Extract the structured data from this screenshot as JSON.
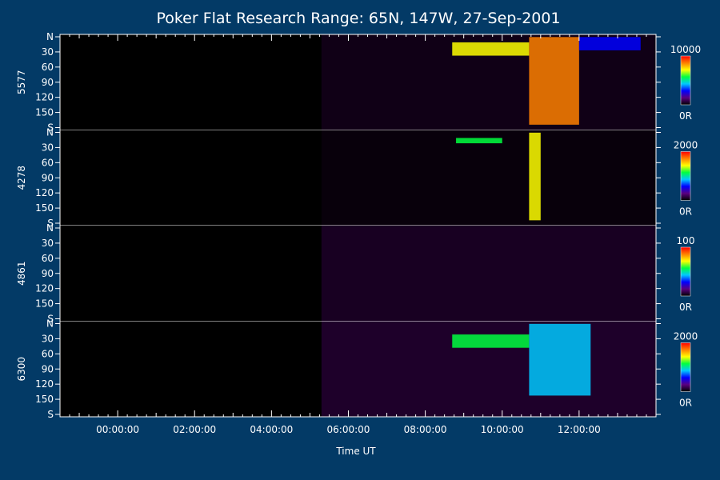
{
  "title": "Poker Flat Research Range: 65N, 147W, 27-Sep-2001",
  "chart_data": {
    "type": "heatmap",
    "title": "Poker Flat Research Range: 65N, 147W, 27-Sep-2001",
    "xlabel": "Time UT",
    "x_ticks": [
      "00:00:00",
      "02:00:00",
      "04:00:00",
      "06:00:00",
      "08:00:00",
      "10:00:00",
      "12:00:00"
    ],
    "xlim_hours": [
      -1.5,
      14.0
    ],
    "y_ticks": [
      "N",
      "30",
      "60",
      "90",
      "120",
      "150",
      "S"
    ],
    "ylim": [
      0,
      180
    ],
    "colormap": [
      "#000000",
      "#5a0080",
      "#0000ff",
      "#00c8ff",
      "#00ff40",
      "#ffff00",
      "#ff8000",
      "#ff0000"
    ],
    "panels": [
      {
        "wavelength": "5577",
        "colorbar_max": "10000",
        "colorbar_min": "0R",
        "data_start_h": 5.3,
        "background_level": 0.08,
        "features": [
          {
            "t0": 8.7,
            "t1": 10.7,
            "lat0": 15,
            "lat1": 40,
            "level": 0.7
          },
          {
            "t0": 10.7,
            "t1": 12.0,
            "lat0": 5,
            "lat1": 170,
            "level": 0.85
          },
          {
            "t0": 12.0,
            "t1": 13.6,
            "lat0": 5,
            "lat1": 30,
            "level": 0.3
          }
        ]
      },
      {
        "wavelength": "4278",
        "colorbar_max": "2000",
        "colorbar_min": "0R",
        "data_start_h": 5.3,
        "background_level": 0.04,
        "features": [
          {
            "t0": 8.8,
            "t1": 10.0,
            "lat0": 15,
            "lat1": 25,
            "level": 0.6
          },
          {
            "t0": 10.7,
            "t1": 11.0,
            "lat0": 5,
            "lat1": 170,
            "level": 0.75
          }
        ]
      },
      {
        "wavelength": "4861",
        "colorbar_max": "100",
        "colorbar_min": "0R",
        "data_start_h": 5.3,
        "background_level": 0.12,
        "features": []
      },
      {
        "wavelength": "6300",
        "colorbar_max": "2000",
        "colorbar_min": "0R",
        "data_start_h": 5.3,
        "background_level": 0.15,
        "features": [
          {
            "t0": 8.7,
            "t1": 10.7,
            "lat0": 25,
            "lat1": 50,
            "level": 0.5
          },
          {
            "t0": 10.7,
            "t1": 12.3,
            "lat0": 5,
            "lat1": 140,
            "level": 0.45
          }
        ]
      }
    ]
  }
}
